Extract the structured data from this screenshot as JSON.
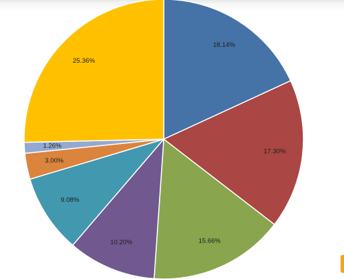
{
  "chart_data": {
    "type": "pie",
    "title": "",
    "slices": [
      {
        "value": 18.14,
        "label": "18.14%",
        "color": "#4572a7"
      },
      {
        "value": 17.3,
        "label": "17.30%",
        "color": "#aa4643"
      },
      {
        "value": 15.66,
        "label": "15.66%",
        "color": "#89a54e"
      },
      {
        "value": 10.2,
        "label": "10.20%",
        "color": "#71588f"
      },
      {
        "value": 9.08,
        "label": "9.08%",
        "color": "#4198af"
      },
      {
        "value": 3.0,
        "label": "3.00%",
        "color": "#db843d"
      },
      {
        "value": 1.26,
        "label": "1.26%",
        "color": "#93a9cf"
      },
      {
        "value": 25.36,
        "label": "25.36%",
        "color": "#ffc000"
      }
    ],
    "start_angle_deg": 0,
    "direction": "clockwise",
    "legend": "none",
    "slice_border_color": "#ffffff"
  }
}
